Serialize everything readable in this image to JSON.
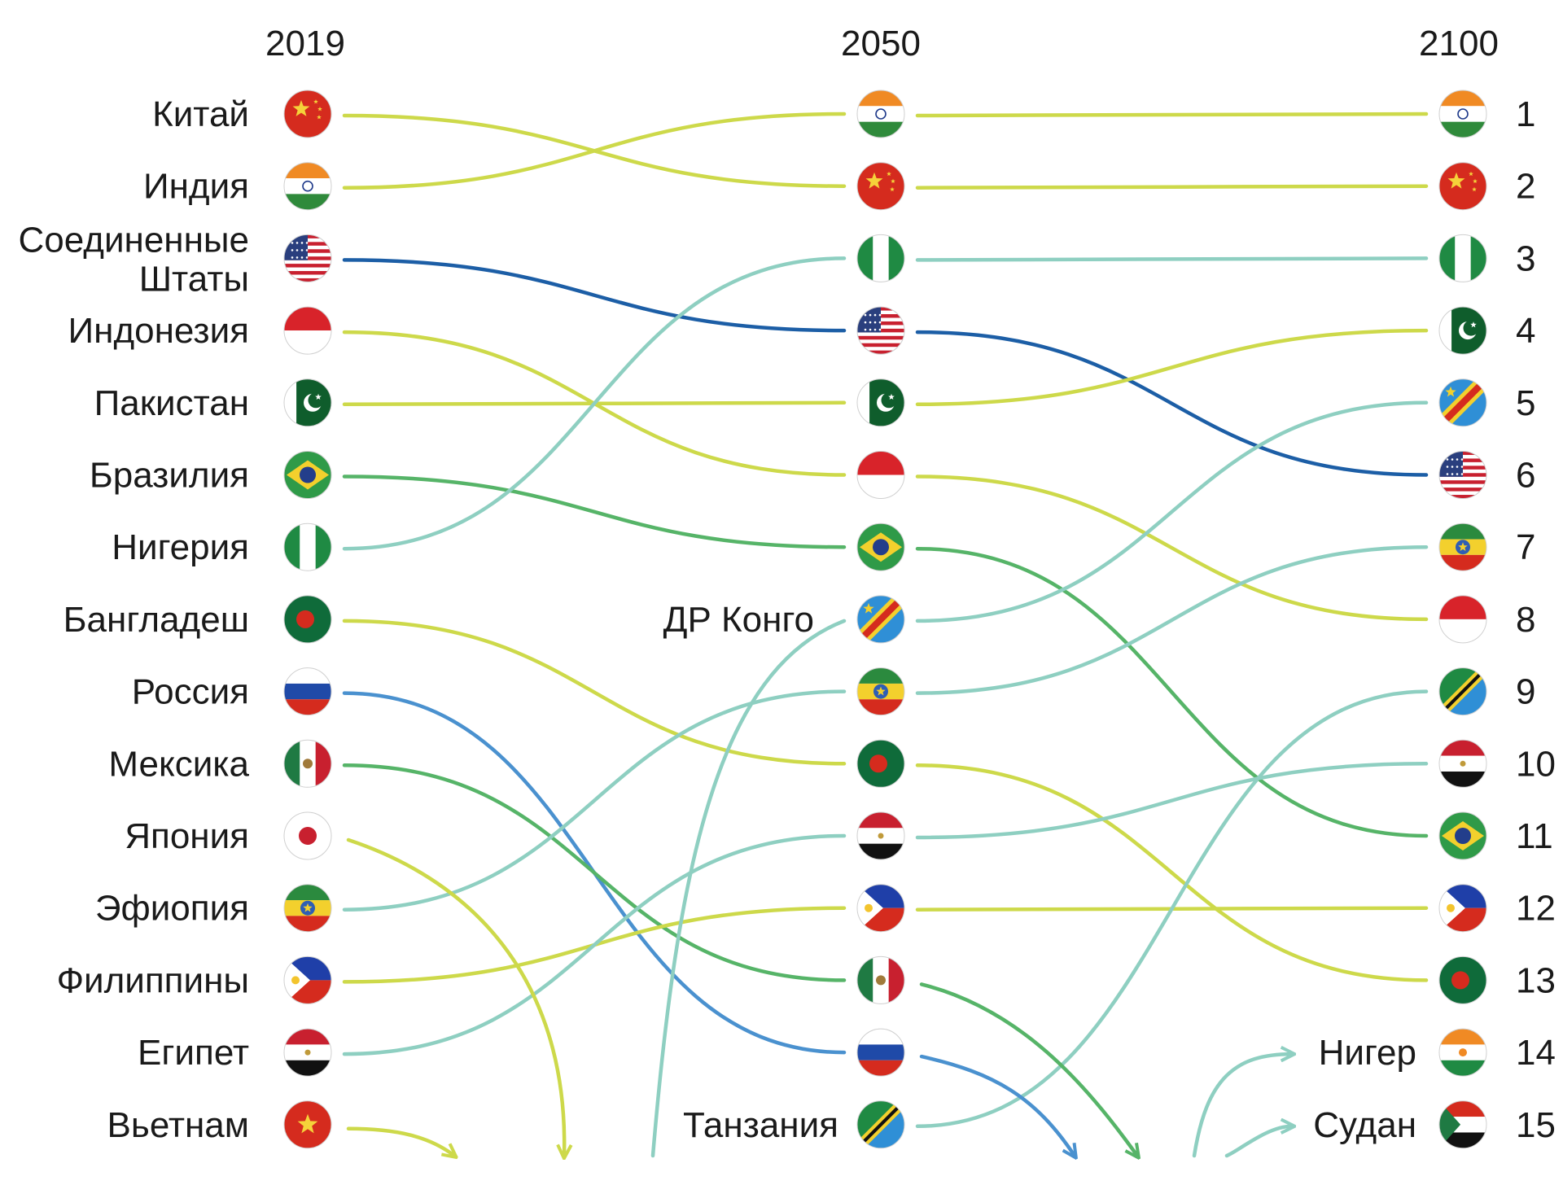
{
  "chart_data": {
    "type": "slope",
    "years": [
      "2019",
      "2050",
      "2100"
    ],
    "colors": {
      "yellow_green": "#cdd94a",
      "teal": "#8ecfc1",
      "dark_blue": "#1c5ea6",
      "light_blue": "#4a91cf",
      "green": "#56b468"
    },
    "countries": {
      "china": {
        "flag": "china-flag"
      },
      "india": {
        "flag": "india-flag"
      },
      "usa": {
        "flag": "usa-flag"
      },
      "indonesia": {
        "flag": "indonesia-flag"
      },
      "pakistan": {
        "flag": "pakistan-flag"
      },
      "brazil": {
        "flag": "brazil-flag"
      },
      "nigeria": {
        "flag": "nigeria-flag"
      },
      "bangladesh": {
        "flag": "bangladesh-flag"
      },
      "russia": {
        "flag": "russia-flag"
      },
      "mexico": {
        "flag": "mexico-flag"
      },
      "japan": {
        "flag": "japan-flag"
      },
      "ethiopia": {
        "flag": "ethiopia-flag"
      },
      "philippines": {
        "flag": "philippines-flag"
      },
      "egypt": {
        "flag": "egypt-flag"
      },
      "vietnam": {
        "flag": "vietnam-flag"
      },
      "drc": {
        "flag": "drc-flag"
      },
      "tanzania": {
        "flag": "tanzania-flag"
      },
      "niger": {
        "flag": "niger-flag"
      },
      "sudan": {
        "flag": "sudan-flag"
      }
    },
    "labels_2019": [
      {
        "id": "china",
        "label": "Китай"
      },
      {
        "id": "india",
        "label": "Индия"
      },
      {
        "id": "usa",
        "label_lines": [
          "Соединенные",
          "Штаты"
        ]
      },
      {
        "id": "indonesia",
        "label": "Индонезия"
      },
      {
        "id": "pakistan",
        "label": "Пакистан"
      },
      {
        "id": "brazil",
        "label": "Бразилия"
      },
      {
        "id": "nigeria",
        "label": "Нигерия"
      },
      {
        "id": "bangladesh",
        "label": "Бангладеш"
      },
      {
        "id": "russia",
        "label": "Россия"
      },
      {
        "id": "mexico",
        "label": "Мексика"
      },
      {
        "id": "japan",
        "label": "Япония"
      },
      {
        "id": "ethiopia",
        "label": "Эфиопия"
      },
      {
        "id": "philippines",
        "label": "Филиппины"
      },
      {
        "id": "egypt",
        "label": "Египет"
      },
      {
        "id": "vietnam",
        "label": "Вьетнам"
      }
    ],
    "ranking_2019": [
      "china",
      "india",
      "usa",
      "indonesia",
      "pakistan",
      "brazil",
      "nigeria",
      "bangladesh",
      "russia",
      "mexico",
      "japan",
      "ethiopia",
      "philippines",
      "egypt",
      "vietnam"
    ],
    "ranking_2050": [
      "india",
      "china",
      "nigeria",
      "usa",
      "pakistan",
      "indonesia",
      "brazil",
      "drc",
      "ethiopia",
      "bangladesh",
      "egypt",
      "philippines",
      "mexico",
      "russia",
      "tanzania"
    ],
    "ranking_2100": [
      "india",
      "china",
      "nigeria",
      "pakistan",
      "drc",
      "usa",
      "ethiopia",
      "indonesia",
      "tanzania",
      "egypt",
      "brazil",
      "philippines",
      "bangladesh",
      "niger",
      "sudan"
    ],
    "labels_2050": {
      "drc": "ДР Конго",
      "tanzania": "Танзания"
    },
    "labels_2100": {
      "niger": "Нигер",
      "sudan": "Судан"
    },
    "rank_labels": [
      "1",
      "2",
      "3",
      "4",
      "5",
      "6",
      "7",
      "8",
      "9",
      "10",
      "11",
      "12",
      "13",
      "14",
      "15"
    ],
    "links_2019_2050": [
      {
        "id": "china",
        "color": "yellow_green"
      },
      {
        "id": "india",
        "color": "yellow_green"
      },
      {
        "id": "usa",
        "color": "dark_blue"
      },
      {
        "id": "indonesia",
        "color": "yellow_green"
      },
      {
        "id": "pakistan",
        "color": "yellow_green"
      },
      {
        "id": "brazil",
        "color": "green"
      },
      {
        "id": "nigeria",
        "color": "teal"
      },
      {
        "id": "bangladesh",
        "color": "yellow_green"
      },
      {
        "id": "russia",
        "color": "light_blue"
      },
      {
        "id": "mexico",
        "color": "green"
      },
      {
        "id": "ethiopia",
        "color": "teal"
      },
      {
        "id": "philippines",
        "color": "yellow_green"
      },
      {
        "id": "egypt",
        "color": "teal"
      }
    ],
    "links_2050_2100": [
      {
        "id": "india",
        "color": "yellow_green"
      },
      {
        "id": "china",
        "color": "yellow_green"
      },
      {
        "id": "nigeria",
        "color": "teal"
      },
      {
        "id": "usa",
        "color": "dark_blue"
      },
      {
        "id": "pakistan",
        "color": "yellow_green"
      },
      {
        "id": "indonesia",
        "color": "yellow_green"
      },
      {
        "id": "brazil",
        "color": "green"
      },
      {
        "id": "drc",
        "color": "teal"
      },
      {
        "id": "ethiopia",
        "color": "teal"
      },
      {
        "id": "bangladesh",
        "color": "yellow_green"
      },
      {
        "id": "egypt",
        "color": "teal"
      },
      {
        "id": "philippines",
        "color": "yellow_green"
      },
      {
        "id": "tanzania",
        "color": "teal"
      }
    ],
    "dropouts": [
      {
        "id": "japan",
        "from": "2019",
        "color": "yellow_green"
      },
      {
        "id": "vietnam",
        "from": "2019",
        "color": "yellow_green"
      },
      {
        "id": "russia",
        "from": "2050",
        "color": "light_blue"
      },
      {
        "id": "mexico",
        "from": "2050",
        "color": "green"
      }
    ],
    "entries": [
      {
        "id": "drc",
        "to": "2050",
        "color": "teal"
      },
      {
        "id": "niger",
        "to": "2100",
        "color": "teal"
      },
      {
        "id": "sudan",
        "to": "2100",
        "color": "teal"
      }
    ]
  }
}
